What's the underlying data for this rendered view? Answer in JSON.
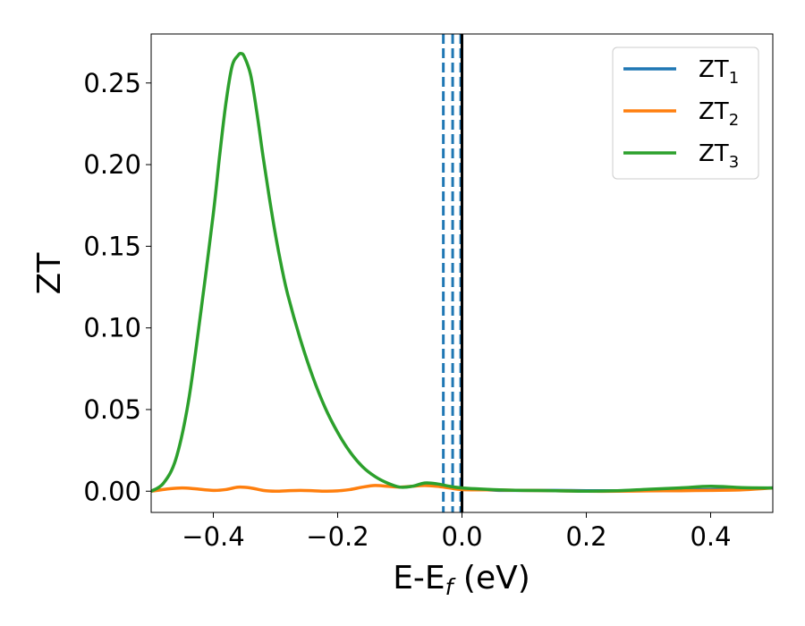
{
  "chart_data": {
    "type": "line",
    "xlabel": "E-E",
    "xlabel_sub": "f",
    "xlabel_unit": " (eV)",
    "ylabel": "ZT",
    "xlim": [
      -0.5,
      0.5
    ],
    "ylim": [
      -0.013,
      0.28
    ],
    "grid": false,
    "legend_position": "top-right",
    "xticks": [
      -0.4,
      -0.2,
      0.0,
      0.2,
      0.4
    ],
    "xtick_labels": [
      "−0.4",
      "−0.2",
      "0.0",
      "0.2",
      "0.4"
    ],
    "yticks": [
      0.0,
      0.05,
      0.1,
      0.15,
      0.2,
      0.25
    ],
    "ytick_labels": [
      "0.00",
      "0.05",
      "0.10",
      "0.15",
      "0.20",
      "0.25"
    ],
    "vlines": [
      {
        "x": -0.03,
        "color": "#1f77b4",
        "style": "dashed"
      },
      {
        "x": -0.015,
        "color": "#1f77b4",
        "style": "dashed"
      },
      {
        "x": -0.002,
        "color": "#1f77b4",
        "style": "dashed"
      },
      {
        "x": 0.0,
        "color": "#000000",
        "style": "solid"
      }
    ],
    "series": [
      {
        "name": "ZT",
        "name_sub": "1",
        "color": "#1f77b4",
        "x": [
          -0.03,
          -0.02,
          -0.01,
          0.0,
          0.02,
          0.04,
          0.06,
          0.08,
          0.1,
          0.15,
          0.2,
          0.25,
          0.3,
          0.35,
          0.4,
          0.45,
          0.5
        ],
        "y": [
          0.003,
          0.0025,
          0.002,
          0.0015,
          0.001,
          0.0008,
          0.0005,
          0.0005,
          0.0005,
          0.0005,
          0.0003,
          0.0003,
          0.0005,
          0.0008,
          0.001,
          0.0015,
          0.002
        ]
      },
      {
        "name": "ZT",
        "name_sub": "2",
        "color": "#ff7f0e",
        "x": [
          -0.5,
          -0.47,
          -0.45,
          -0.43,
          -0.4,
          -0.38,
          -0.36,
          -0.34,
          -0.32,
          -0.3,
          -0.28,
          -0.26,
          -0.24,
          -0.22,
          -0.2,
          -0.18,
          -0.16,
          -0.14,
          -0.12,
          -0.1,
          -0.08,
          -0.06,
          -0.04,
          -0.02,
          0.0,
          0.05,
          0.1,
          0.15,
          0.2,
          0.25,
          0.3,
          0.35,
          0.4,
          0.45,
          0.5
        ],
        "y": [
          0.0,
          0.0015,
          0.002,
          0.0015,
          0.0005,
          0.001,
          0.0025,
          0.002,
          0.0005,
          0.0,
          0.0003,
          0.0005,
          0.0003,
          0.0,
          0.0002,
          0.001,
          0.0025,
          0.0035,
          0.003,
          0.0025,
          0.003,
          0.0035,
          0.003,
          0.002,
          0.001,
          0.0008,
          0.0005,
          0.0003,
          0.0,
          0.0,
          0.0002,
          0.0003,
          0.0005,
          0.0008,
          0.002
        ]
      },
      {
        "name": "ZT",
        "name_sub": "3",
        "color": "#2ca02c",
        "x": [
          -0.5,
          -0.48,
          -0.46,
          -0.44,
          -0.42,
          -0.4,
          -0.39,
          -0.38,
          -0.37,
          -0.36,
          -0.355,
          -0.35,
          -0.34,
          -0.33,
          -0.32,
          -0.31,
          -0.3,
          -0.29,
          -0.28,
          -0.26,
          -0.24,
          -0.22,
          -0.2,
          -0.18,
          -0.16,
          -0.14,
          -0.12,
          -0.1,
          -0.08,
          -0.06,
          -0.04,
          -0.02,
          0.0,
          0.05,
          0.1,
          0.15,
          0.2,
          0.25,
          0.3,
          0.35,
          0.4,
          0.45,
          0.5
        ],
        "y": [
          0.0,
          0.005,
          0.02,
          0.055,
          0.11,
          0.17,
          0.205,
          0.237,
          0.26,
          0.267,
          0.268,
          0.266,
          0.255,
          0.232,
          0.205,
          0.18,
          0.157,
          0.137,
          0.12,
          0.093,
          0.07,
          0.051,
          0.036,
          0.024,
          0.015,
          0.009,
          0.005,
          0.0025,
          0.003,
          0.005,
          0.0045,
          0.003,
          0.002,
          0.001,
          0.0005,
          0.0003,
          0.0,
          0.0003,
          0.0012,
          0.002,
          0.003,
          0.0022,
          0.002
        ]
      }
    ]
  }
}
